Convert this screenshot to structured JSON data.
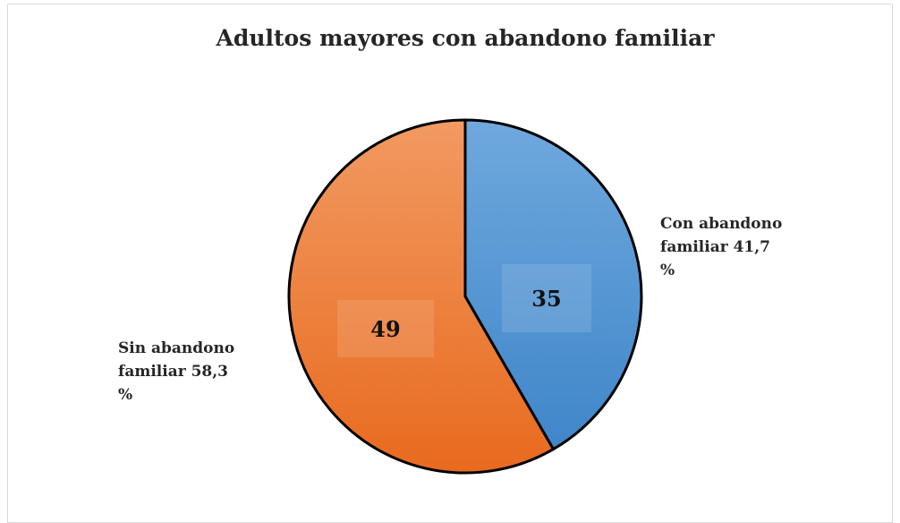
{
  "chart_data": {
    "type": "pie",
    "title": "Adultos mayores con abandono familiar",
    "slices": [
      {
        "value": 35,
        "value_label": "35",
        "label_lines": [
          "Con abandono",
          "familiar  41,7",
          "%"
        ],
        "color_top": "#6fa8dd",
        "color_bottom": "#3f86c9"
      },
      {
        "value": 49,
        "value_label": "49",
        "label_lines": [
          "Sin  abandono",
          "familiar  58,3",
          "%"
        ],
        "color_top": "#f19a62",
        "color_bottom": "#e86a1e"
      }
    ],
    "start_angle": "12 o'clock",
    "direction": "clockwise",
    "slice_border_color": "#000000",
    "legend": "none"
  }
}
